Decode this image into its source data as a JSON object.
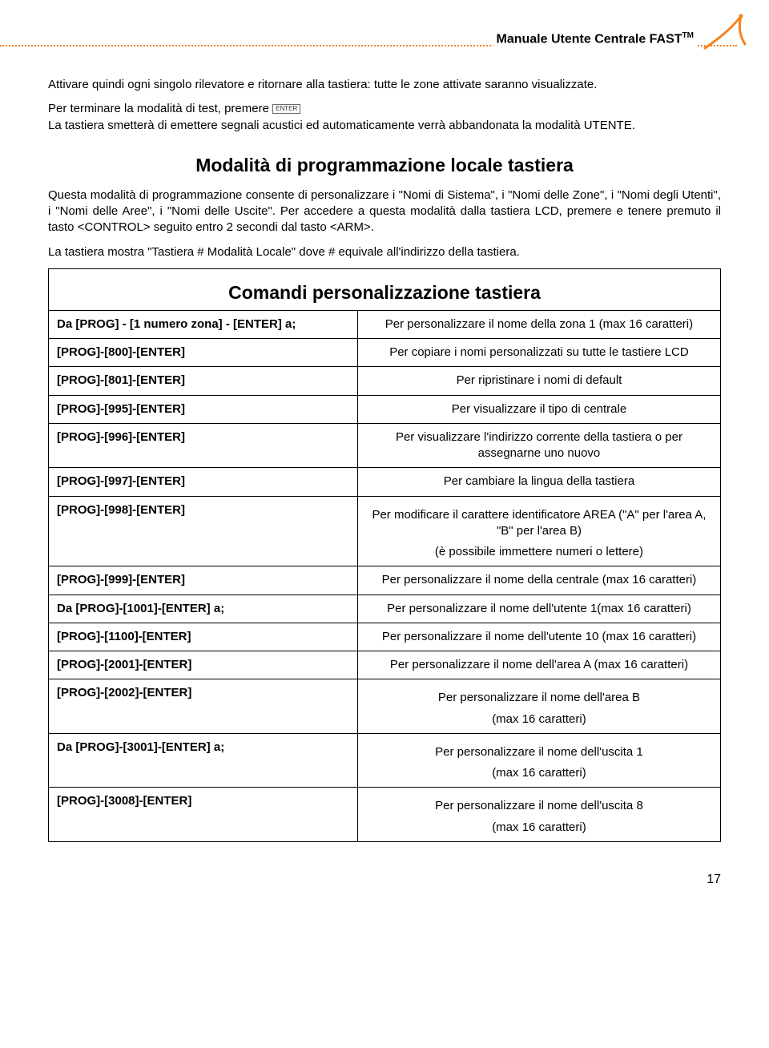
{
  "header": {
    "title_prefix": "Manuale Utente Centrale ",
    "title_bold": "FAST",
    "tm": "TM",
    "dotted_line_color": "#f58220",
    "logo_stroke": "#f58220"
  },
  "intro": {
    "p1": "Attivare quindi ogni singolo rilevatore e ritornare alla tastiera: tutte le zone attivate saranno visualizzate.",
    "p2a": "Per terminare la modalità di test, premere ",
    "enter_label": "ENTER",
    "p2b": "La tastiera smetterà di emettere segnali acustici ed automaticamente verrà abbandonata la modalità UTENTE."
  },
  "section1": {
    "title": "Modalità di programmazione locale tastiera",
    "p1": "Questa modalità di programmazione consente di personalizzare i \"Nomi di Sistema\", i \"Nomi delle Zone\", i \"Nomi degli Utenti\", i \"Nomi delle Aree\", i \"Nomi delle Uscite\". Per accedere a questa modalità dalla tastiera LCD, premere e tenere premuto il tasto <CONTROL> seguito entro 2 secondi dal tasto <ARM>.",
    "p2": "La tastiera mostra \"Tastiera # Modalità Locale\" dove # equivale all'indirizzo della tastiera."
  },
  "table": {
    "title": "Comandi personalizzazione tastiera",
    "rows": [
      {
        "cmd": "Da [PROG] - [1 numero zona] - [ENTER] a;",
        "desc": [
          "Per personalizzare il nome della zona 1 (max 16 caratteri)"
        ]
      },
      {
        "cmd": "[PROG]-[800]-[ENTER]",
        "desc": [
          "Per copiare i nomi personalizzati su tutte le tastiere LCD"
        ]
      },
      {
        "cmd": "[PROG]-[801]-[ENTER]",
        "desc": [
          "Per ripristinare i nomi di default"
        ]
      },
      {
        "cmd": "[PROG]-[995]-[ENTER]",
        "desc": [
          "Per visualizzare il tipo di centrale"
        ]
      },
      {
        "cmd": "[PROG]-[996]-[ENTER]",
        "desc": [
          "Per visualizzare l'indirizzo corrente della tastiera o per assegnarne uno nuovo"
        ]
      },
      {
        "cmd": "[PROG]-[997]-[ENTER]",
        "desc": [
          "Per cambiare la lingua della tastiera"
        ]
      },
      {
        "cmd": "[PROG]-[998]-[ENTER]",
        "desc": [
          "Per modificare il carattere identificatore AREA (\"A\" per l'area A, \"B\" per l'area B)",
          "(è possibile immettere numeri o lettere)"
        ]
      },
      {
        "cmd": "[PROG]-[999]-[ENTER]",
        "desc": [
          "Per personalizzare il nome della centrale (max 16 caratteri)"
        ]
      },
      {
        "cmd": "Da [PROG]-[1001]-[ENTER] a;",
        "desc": [
          "Per personalizzare il nome dell'utente 1(max 16 caratteri)"
        ]
      },
      {
        "cmd": "[PROG]-[1100]-[ENTER]",
        "desc": [
          "Per personalizzare il nome dell'utente 10 (max 16 caratteri)"
        ]
      },
      {
        "cmd": "[PROG]-[2001]-[ENTER]",
        "desc": [
          "Per personalizzare il nome dell'area A (max 16 caratteri)"
        ]
      },
      {
        "cmd": "[PROG]-[2002]-[ENTER]",
        "desc": [
          "Per personalizzare il nome dell'area B",
          "(max 16 caratteri)"
        ]
      },
      {
        "cmd": "Da [PROG]-[3001]-[ENTER] a;",
        "desc": [
          "Per personalizzare il nome dell'uscita 1",
          "(max 16 caratteri)"
        ]
      },
      {
        "cmd": "[PROG]-[3008]-[ENTER]",
        "desc": [
          "Per personalizzare il nome dell'uscita 8",
          "(max 16 caratteri)"
        ]
      }
    ]
  },
  "page_number": "17"
}
